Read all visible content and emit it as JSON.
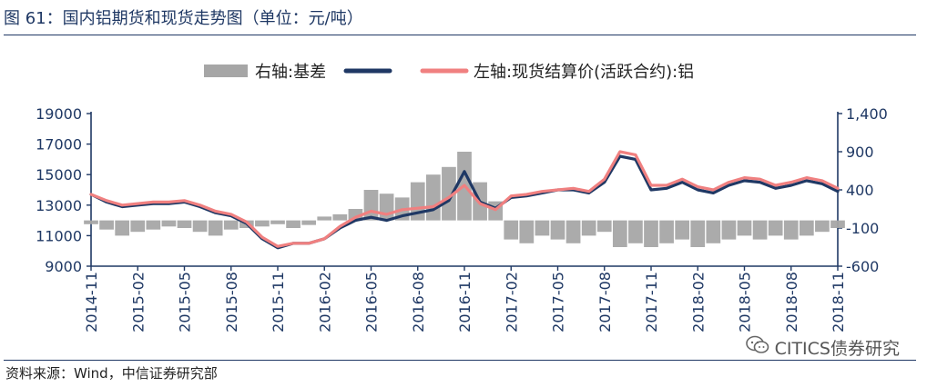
{
  "title": "图 61：国内铝期货和现货走势图（单位：元/吨）",
  "source": "资料来源：Wind，中信证券研究部",
  "watermark": "CITICS债券研究",
  "chart_data": {
    "type": "line",
    "legend": [
      {
        "name": "右轴:基差",
        "color": "#a6a6a6",
        "kind": "area"
      },
      {
        "name": "",
        "color": "#1f3864",
        "kind": "line"
      },
      {
        "name": "左轴:现货结算价(活跃合约):铝",
        "color": "#f08080",
        "kind": "line"
      }
    ],
    "x_ticks": [
      "2014-11",
      "2015-02",
      "2015-05",
      "2015-08",
      "2015-11",
      "2016-02",
      "2016-05",
      "2016-08",
      "2016-11",
      "2017-02",
      "2017-05",
      "2017-08",
      "2017-11",
      "2018-02",
      "2018-05",
      "2018-08",
      "2018-11"
    ],
    "y_left": {
      "ticks": [
        "19000",
        "17000",
        "15000",
        "13000",
        "11000",
        "9000"
      ],
      "ylim": [
        9000,
        19000
      ]
    },
    "y_right": {
      "ticks": [
        "1,400",
        "900",
        "400",
        "-100",
        "-600"
      ],
      "ylim": [
        -600,
        1400
      ]
    },
    "series": [
      {
        "axis": "left",
        "color": "#1f3864",
        "x": [
          "2014-11",
          "2014-12",
          "2015-01",
          "2015-02",
          "2015-03",
          "2015-04",
          "2015-05",
          "2015-06",
          "2015-07",
          "2015-08",
          "2015-09",
          "2015-10",
          "2015-11",
          "2015-12",
          "2016-01",
          "2016-02",
          "2016-03",
          "2016-04",
          "2016-05",
          "2016-06",
          "2016-07",
          "2016-08",
          "2016-09",
          "2016-10",
          "2016-11",
          "2016-12",
          "2017-01",
          "2017-02",
          "2017-03",
          "2017-04",
          "2017-05",
          "2017-06",
          "2017-07",
          "2017-08",
          "2017-09",
          "2017-10",
          "2017-11",
          "2017-12",
          "2018-01",
          "2018-02",
          "2018-03",
          "2018-04",
          "2018-05",
          "2018-06",
          "2018-07",
          "2018-08",
          "2018-09",
          "2018-10",
          "2018-11"
        ],
        "values": [
          13700,
          13200,
          12900,
          13000,
          13100,
          13100,
          13200,
          12900,
          12500,
          12300,
          11800,
          10800,
          10200,
          10500,
          10500,
          10800,
          11500,
          12000,
          12200,
          12000,
          12300,
          12500,
          12700,
          13300,
          15200,
          13200,
          12800,
          13500,
          13600,
          13800,
          14000,
          14000,
          13800,
          14500,
          16200,
          16000,
          14000,
          14100,
          14500,
          14000,
          13800,
          14300,
          14600,
          14500,
          14100,
          14300,
          14600,
          14400,
          13900
        ]
      },
      {
        "axis": "left",
        "color": "#f08080",
        "x": [
          "2014-11",
          "2014-12",
          "2015-01",
          "2015-02",
          "2015-03",
          "2015-04",
          "2015-05",
          "2015-06",
          "2015-07",
          "2015-08",
          "2015-09",
          "2015-10",
          "2015-11",
          "2015-12",
          "2016-01",
          "2016-02",
          "2016-03",
          "2016-04",
          "2016-05",
          "2016-06",
          "2016-07",
          "2016-08",
          "2016-09",
          "2016-10",
          "2016-11",
          "2016-12",
          "2017-01",
          "2017-02",
          "2017-03",
          "2017-04",
          "2017-05",
          "2017-06",
          "2017-07",
          "2017-08",
          "2017-09",
          "2017-10",
          "2017-11",
          "2017-12",
          "2018-01",
          "2018-02",
          "2018-03",
          "2018-04",
          "2018-05",
          "2018-06",
          "2018-07",
          "2018-08",
          "2018-09",
          "2018-10",
          "2018-11"
        ],
        "values": [
          13700,
          13300,
          13000,
          13100,
          13200,
          13200,
          13300,
          13000,
          12600,
          12400,
          11900,
          10900,
          10300,
          10500,
          10500,
          10800,
          11600,
          12200,
          12600,
          12400,
          12700,
          12800,
          12900,
          13500,
          14300,
          13100,
          12700,
          13600,
          13700,
          13900,
          14000,
          14100,
          13900,
          14700,
          16500,
          16300,
          14300,
          14300,
          14700,
          14200,
          14000,
          14500,
          14800,
          14700,
          14300,
          14500,
          14800,
          14600,
          14100
        ]
      },
      {
        "axis": "right",
        "color": "#a6a6a6",
        "type": "area",
        "x": [
          "2014-11",
          "2014-12",
          "2015-01",
          "2015-02",
          "2015-03",
          "2015-04",
          "2015-05",
          "2015-06",
          "2015-07",
          "2015-08",
          "2015-09",
          "2015-10",
          "2015-11",
          "2015-12",
          "2016-01",
          "2016-02",
          "2016-03",
          "2016-04",
          "2016-05",
          "2016-06",
          "2016-07",
          "2016-08",
          "2016-09",
          "2016-10",
          "2016-11",
          "2016-12",
          "2017-01",
          "2017-02",
          "2017-03",
          "2017-04",
          "2017-05",
          "2017-06",
          "2017-07",
          "2017-08",
          "2017-09",
          "2017-10",
          "2017-11",
          "2017-12",
          "2018-01",
          "2018-02",
          "2018-03",
          "2018-04",
          "2018-05",
          "2018-06",
          "2018-07",
          "2018-08",
          "2018-09",
          "2018-10",
          "2018-11"
        ],
        "values": [
          -50,
          -120,
          -200,
          -150,
          -120,
          -80,
          -100,
          -150,
          -200,
          -120,
          -100,
          -80,
          -50,
          -100,
          -60,
          50,
          80,
          150,
          400,
          350,
          300,
          500,
          600,
          700,
          900,
          500,
          250,
          -250,
          -300,
          -200,
          -250,
          -300,
          -200,
          -150,
          -350,
          -300,
          -350,
          -300,
          -250,
          -350,
          -300,
          -250,
          -200,
          -250,
          -200,
          -250,
          -200,
          -150,
          -100
        ]
      }
    ]
  }
}
